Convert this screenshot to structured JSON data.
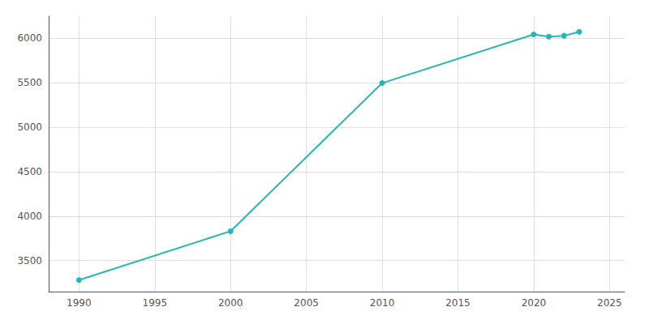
{
  "chart_data": {
    "type": "line",
    "x": [
      1990,
      2000,
      2010,
      2020,
      2021,
      2022,
      2023
    ],
    "values": [
      3280,
      3830,
      5497,
      6045,
      6020,
      6030,
      6075
    ],
    "color": "#2ab5b5",
    "marker": "circle",
    "line_style": "solid",
    "xlim": [
      1988,
      2026
    ],
    "xticks": [
      1990,
      1995,
      2000,
      2005,
      2010,
      2015,
      2020,
      2025
    ],
    "ylim": [
      3150,
      6250
    ],
    "yticks": [
      3500,
      4000,
      4500,
      5000,
      5500,
      6000
    ],
    "grid": true
  }
}
